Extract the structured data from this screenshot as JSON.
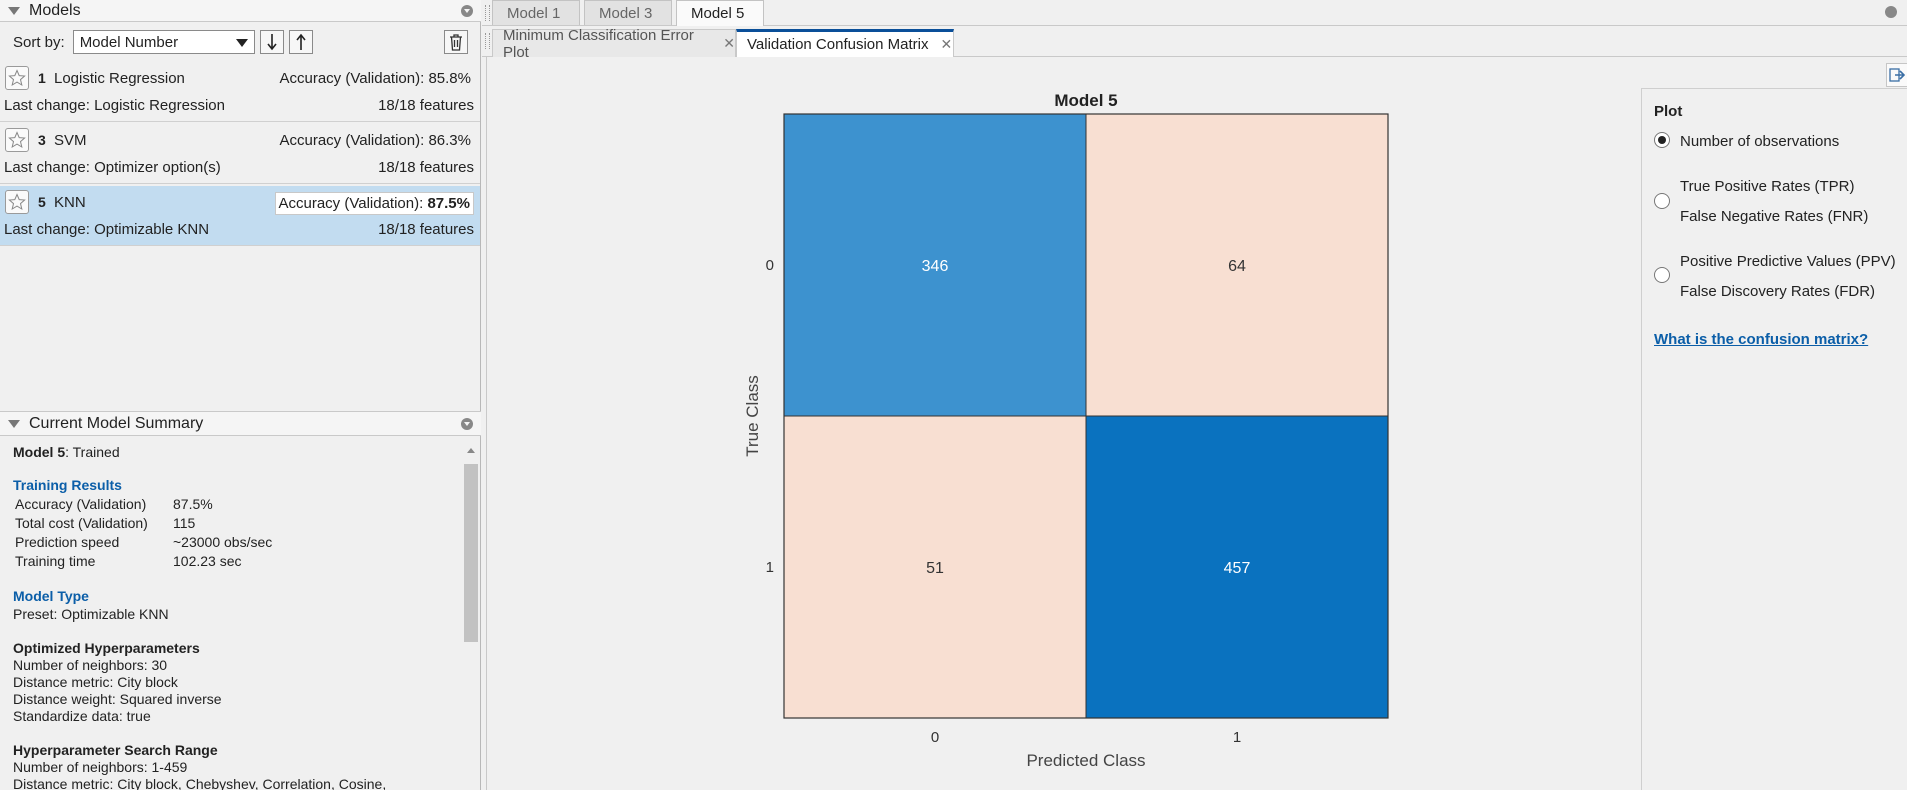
{
  "models_panel": {
    "title": "Models",
    "sort_label": "Sort by:",
    "sort_value": "Model Number",
    "rows": [
      {
        "num": "1",
        "name": "Logistic Regression",
        "accuracy_label": "Accuracy (Validation):",
        "accuracy": "85.8%",
        "change": "Last change: Logistic Regression",
        "features": "18/18 features"
      },
      {
        "num": "3",
        "name": "SVM",
        "accuracy_label": "Accuracy (Validation):",
        "accuracy": "86.3%",
        "change": "Last change: Optimizer option(s)",
        "features": "18/18 features"
      },
      {
        "num": "5",
        "name": "KNN",
        "accuracy_label": "Accuracy (Validation):",
        "accuracy": "87.5%",
        "change": "Last change: Optimizable KNN",
        "features": "18/18 features"
      }
    ]
  },
  "summary": {
    "title": "Current Model Summary",
    "model_name": "Model 5",
    "status": ": Trained",
    "training_results_heading": "Training Results",
    "results": [
      {
        "k": "Accuracy (Validation)",
        "v": "87.5%"
      },
      {
        "k": "Total cost (Validation)",
        "v": "115"
      },
      {
        "k": "Prediction speed",
        "v": "~23000 obs/sec"
      },
      {
        "k": "Training time",
        "v": "102.23 sec"
      }
    ],
    "model_type_heading": "Model Type",
    "preset": "Preset: Optimizable KNN",
    "hyper_heading": "Optimized Hyperparameters",
    "hyper": [
      "Number of neighbors: 30",
      "Distance metric: City block",
      "Distance weight: Squared inverse",
      "Standardize data: true"
    ],
    "range_heading": "Hyperparameter Search Range",
    "range": [
      "Number of neighbors: 1-459",
      "Distance metric: City block, Chebyshev, Correlation, Cosine,"
    ]
  },
  "doc_tabs": [
    "Model 1",
    "Model 3",
    "Model 5"
  ],
  "plot_tabs": [
    "Minimum Classification Error Plot",
    "Validation Confusion Matrix"
  ],
  "chart_data": {
    "type": "heatmap",
    "title": "Model 5",
    "xlabel": "Predicted Class",
    "ylabel": "True Class",
    "x_categories": [
      "0",
      "1"
    ],
    "y_categories": [
      "0",
      "1"
    ],
    "values": [
      [
        346,
        64
      ],
      [
        51,
        457
      ]
    ],
    "cell_colors": [
      [
        "#3d92cf",
        "#f8dfd2"
      ],
      [
        "#f8dfd2",
        "#0a72bf"
      ]
    ],
    "text_colors": [
      [
        "#ffffff",
        "#333333"
      ],
      [
        "#333333",
        "#ffffff"
      ]
    ]
  },
  "plot_options": {
    "heading": "Plot",
    "options": [
      {
        "line1": "Number of observations",
        "line2": "",
        "selected": true
      },
      {
        "line1": "True Positive Rates (TPR)",
        "line2": "False Negative Rates (FNR)",
        "selected": false
      },
      {
        "line1": "Positive Predictive Values (PPV)",
        "line2": "False Discovery Rates (FDR)",
        "selected": false
      }
    ],
    "help_link": "What is the confusion matrix?"
  }
}
